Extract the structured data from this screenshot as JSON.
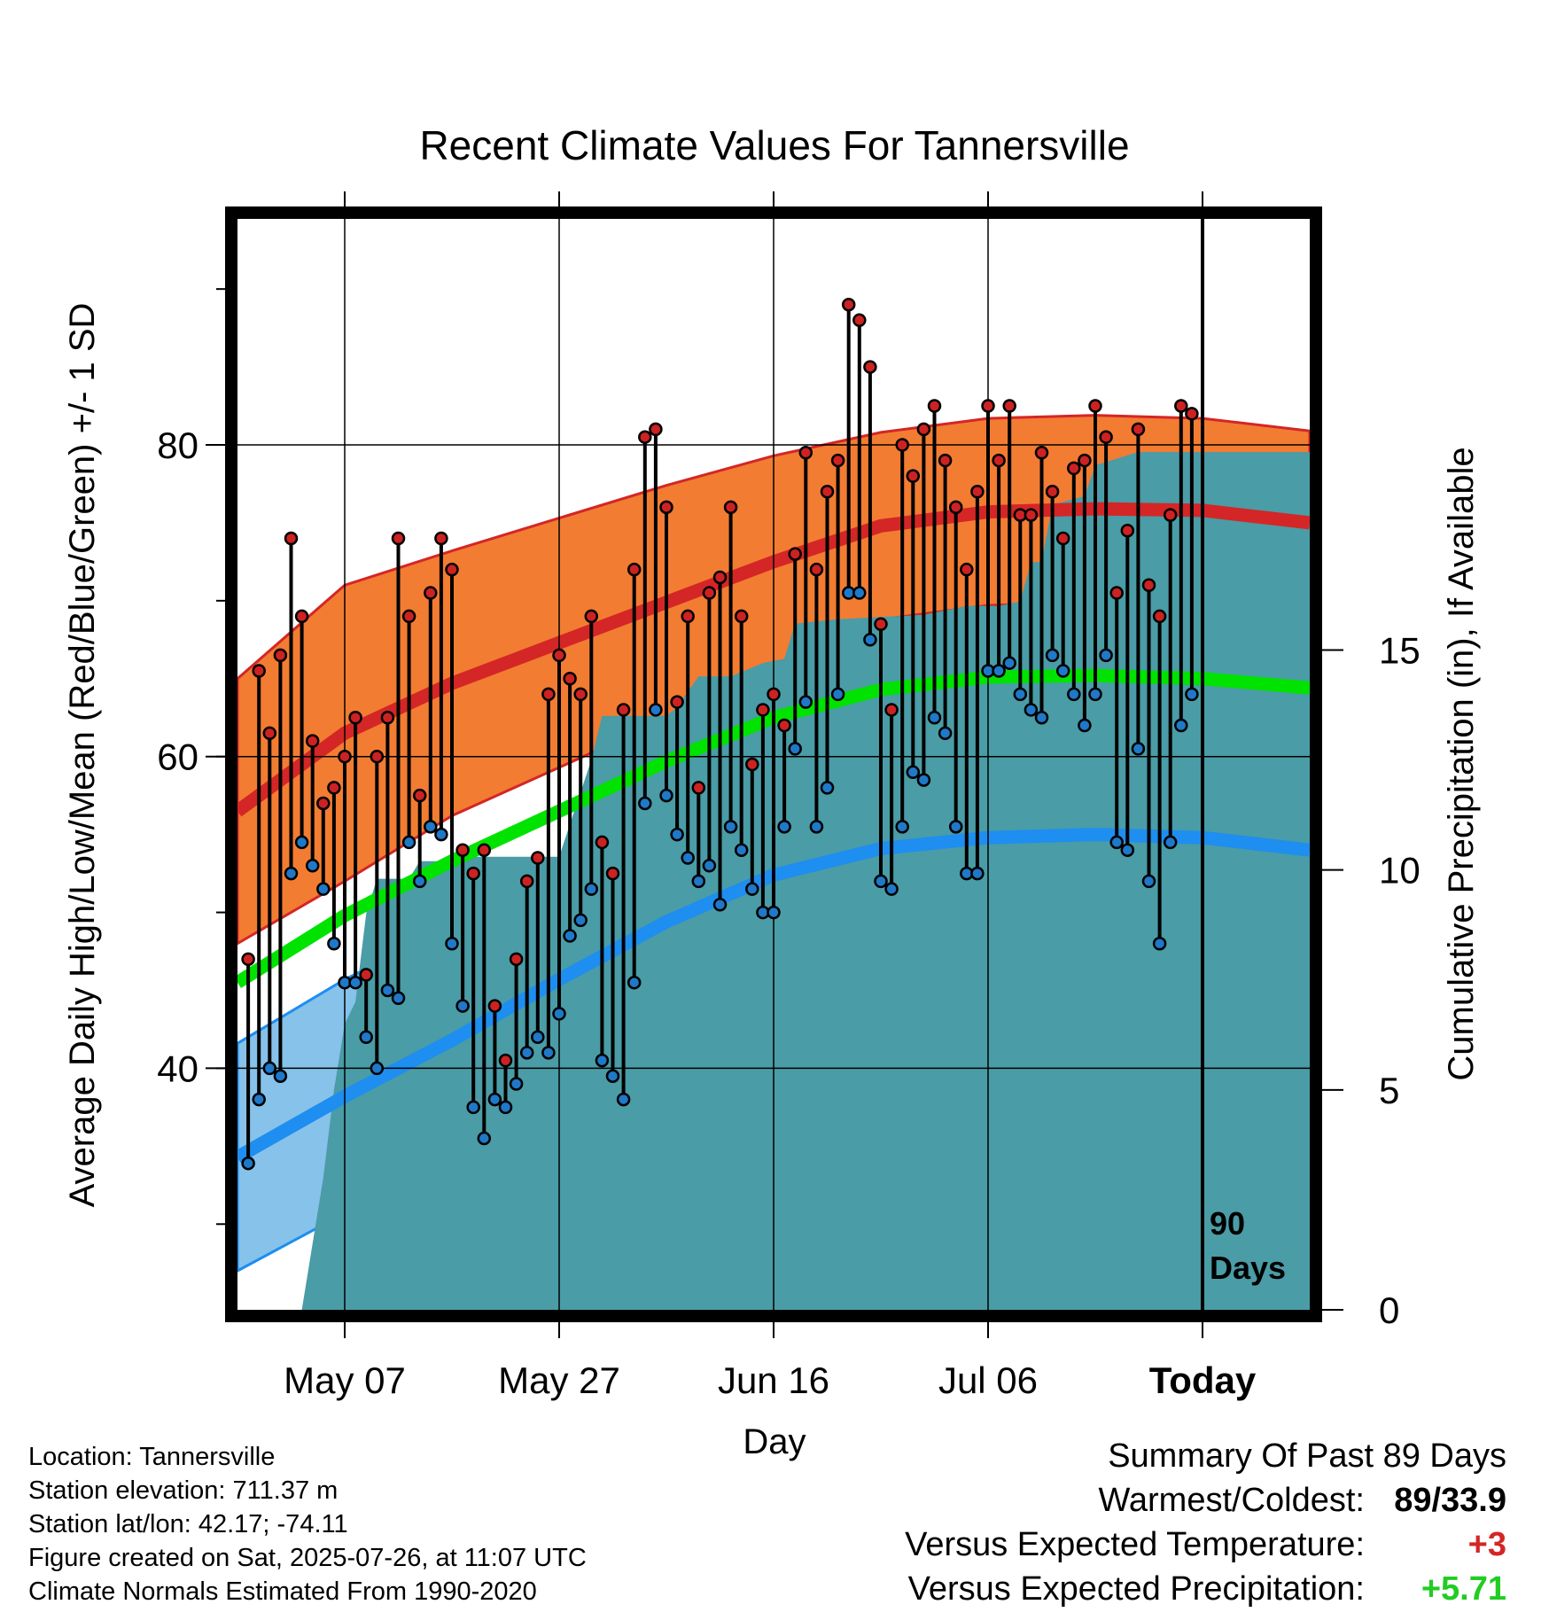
{
  "chart_data": {
    "type": "line",
    "title": "Recent Climate Values For Tannersville",
    "xlabel": "Day",
    "ylabel_left": "Average Daily High/Low/Mean (Red/Blue/Green) +/- 1 SD",
    "ylabel_right": "Cumulative Precipitation (in), If Available",
    "ylim_left": [
      24.5,
      94.5
    ],
    "ylim_right": [
      0,
      24.8
    ],
    "left_ticks": [
      40,
      60,
      80
    ],
    "right_ticks": [
      0,
      5,
      10,
      15
    ],
    "x_ticks": [
      {
        "day": 10,
        "label": "May 07"
      },
      {
        "day": 30,
        "label": "May 27"
      },
      {
        "day": 50,
        "label": "Jun 16"
      },
      {
        "day": 70,
        "label": "Jul 06"
      },
      {
        "day": 90,
        "label": "Today"
      }
    ],
    "today_marker": {
      "day": 90,
      "label_line1": "90",
      "label_line2": "Days"
    },
    "xlim": [
      0,
      100
    ],
    "normals": {
      "days": [
        0,
        10,
        20,
        30,
        40,
        50,
        60,
        70,
        80,
        90,
        100
      ],
      "high_mean": [
        56.5,
        61.5,
        64.7,
        67.3,
        69.9,
        72.5,
        74.8,
        75.7,
        75.9,
        75.8,
        75.0
      ],
      "high_sd": [
        8.5,
        9.5,
        8.5,
        8.0,
        7.5,
        6.8,
        6.0,
        6.0,
        6.0,
        5.9,
        5.9
      ],
      "low_mean": [
        34.3,
        38.2,
        41.8,
        45.7,
        49.4,
        52.4,
        54.1,
        54.8,
        55.0,
        54.8,
        54.0
      ],
      "low_sd": [
        7.3,
        7.5,
        7.3,
        7.0,
        6.5,
        6.0,
        5.6,
        5.4,
        5.4,
        5.4,
        5.4
      ],
      "mean": [
        45.5,
        49.8,
        53.3,
        56.5,
        59.7,
        62.5,
        64.3,
        65.1,
        65.2,
        65.0,
        64.4
      ]
    },
    "observed": {
      "high": [
        47,
        65.5,
        61.5,
        66.5,
        74,
        69,
        61,
        57,
        58,
        60,
        62.5,
        46,
        60,
        62.5,
        74,
        69,
        57.5,
        70.5,
        74,
        72,
        54,
        52.5,
        54,
        44,
        40.5,
        47,
        52,
        53.5,
        64,
        66.5,
        65,
        64,
        69,
        54.5,
        52.5,
        63,
        72,
        80.5,
        81,
        76,
        63.5,
        69,
        58,
        70.5,
        71.5,
        76,
        69,
        59.5,
        63,
        64,
        62,
        73,
        79.5,
        72,
        77,
        79,
        89,
        88,
        85,
        68.5,
        63,
        80,
        78,
        81,
        82.5,
        79,
        76,
        72,
        77,
        82.5,
        79,
        82.5,
        75.5,
        75.5,
        79.5,
        77,
        74,
        78.5,
        79,
        82.5,
        80.5,
        70.5,
        74.5,
        81,
        71,
        69,
        75.5,
        82.5,
        82
      ],
      "low": [
        33.9,
        38,
        40,
        39.5,
        52.5,
        54.5,
        53,
        51.5,
        48,
        45.5,
        45.5,
        42,
        40,
        45,
        44.5,
        54.5,
        52,
        55.5,
        55,
        48,
        44,
        37.5,
        35.5,
        38,
        37.5,
        39,
        41,
        42,
        41,
        43.5,
        48.5,
        49.5,
        51.5,
        40.5,
        39.5,
        38,
        45.5,
        57,
        63,
        57.5,
        55,
        53.5,
        52,
        53,
        50.5,
        55.5,
        54,
        51.5,
        50,
        50,
        55.5,
        60.5,
        63.5,
        55.5,
        58,
        64,
        70.5,
        70.5,
        67.5,
        52,
        51.5,
        55.5,
        59,
        58.5,
        62.5,
        61.5,
        55.5,
        52.5,
        52.5,
        65.5,
        65.5,
        66,
        64,
        63,
        62.5,
        66.5,
        65.5,
        64,
        62,
        64,
        66.5,
        54.5,
        54,
        60.5,
        52,
        48,
        54.5,
        62,
        64
      ]
    },
    "precip_cumulative": {
      "days": [
        0,
        6,
        7,
        8,
        9,
        10,
        11,
        12,
        13,
        16,
        17,
        20,
        22,
        30,
        33,
        34,
        35,
        40,
        41,
        43,
        46,
        47,
        49,
        51,
        52,
        56,
        64,
        68,
        71,
        73,
        74,
        75,
        76,
        79,
        80,
        84,
        87,
        100
      ],
      "values": [
        0,
        0,
        1.5,
        3,
        5,
        6.5,
        7,
        9,
        9.8,
        9.8,
        10.2,
        10.2,
        10.3,
        10.3,
        12.5,
        13.5,
        13.5,
        13.5,
        13.7,
        14.4,
        14.4,
        14.5,
        14.7,
        14.8,
        15.6,
        15.7,
        15.8,
        16,
        16,
        16.1,
        17,
        17,
        18.3,
        18.5,
        19.2,
        19.5,
        19.5,
        19.5
      ]
    },
    "colors": {
      "high_band": "#f27c32",
      "high_line": "#d42626",
      "low_band": "#86c2ea",
      "low_line": "#1e8ef0",
      "mean_line": "#00e300",
      "precip": "#4a9ca6",
      "high_dot": "#cc2222",
      "low_dot": "#1f78c8"
    }
  },
  "footer": {
    "location": "Location: Tannersville",
    "elevation": "Station elevation: 711.37 m",
    "latlon": "Station lat/lon: 42.17; -74.11",
    "created": "Figure created on Sat, 2025-07-26, at 11:07 UTC",
    "normals": "Climate Normals Estimated From 1990-2020"
  },
  "summary": {
    "heading": "Summary Of Past 89 Days",
    "warm_cold_label": "Warmest/Coldest:",
    "warm_cold_value": "89/33.9",
    "temp_label": "Versus Expected Temperature:",
    "temp_value": "+3",
    "temp_color": "#d42626",
    "precip_label": "Versus Expected Precipitation:",
    "precip_value": "+5.71",
    "precip_color": "#22cc22"
  }
}
